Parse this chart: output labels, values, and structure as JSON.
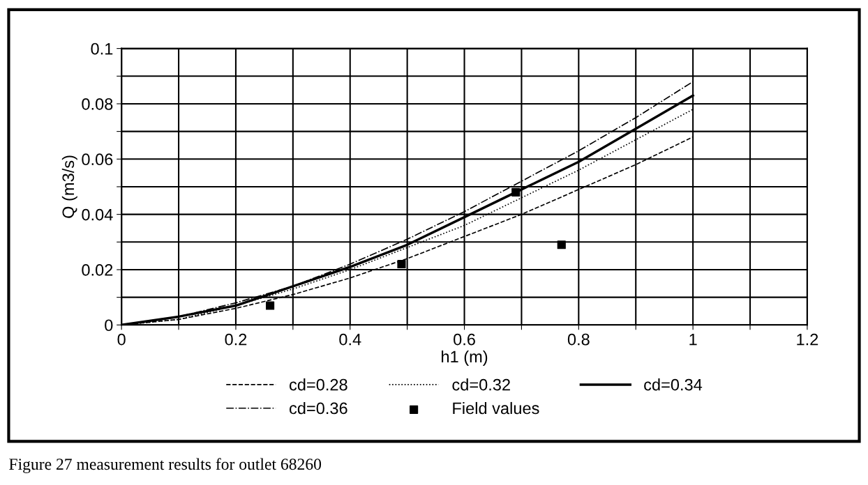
{
  "chart_data": {
    "type": "line",
    "xlabel": "h1 (m)",
    "ylabel": "Q (m3/s)",
    "xlim": [
      0,
      1.2
    ],
    "ylim": [
      0,
      0.1
    ],
    "xticks": [
      0,
      {
        "value": 0.1,
        "label": null
      },
      0.2,
      {
        "value": 0.3,
        "label": null
      },
      0.4,
      {
        "value": 0.5,
        "label": null
      },
      0.6,
      {
        "value": 0.7,
        "label": null
      },
      0.8,
      {
        "value": 0.9,
        "label": null
      },
      1,
      {
        "value": 1.1,
        "label": null
      },
      1.2
    ],
    "yticks": [
      0,
      {
        "value": 0.01,
        "label": null
      },
      0.02,
      {
        "value": 0.03,
        "label": null
      },
      0.04,
      {
        "value": 0.05,
        "label": null
      },
      0.06,
      {
        "value": 0.07,
        "label": null
      },
      0.08,
      {
        "value": 0.09,
        "label": null
      },
      0.1
    ],
    "grid": true,
    "legend": "bottom",
    "series": [
      {
        "name": "cd=0.28",
        "color": "#000000",
        "line_style": "dashed",
        "x": [
          0,
          0.1,
          0.2,
          0.3,
          0.4,
          0.5,
          0.6,
          0.7,
          0.8,
          0.9,
          1.0
        ],
        "values": [
          0,
          0.002,
          0.006,
          0.011,
          0.017,
          0.024,
          0.032,
          0.04,
          0.049,
          0.058,
          0.068
        ]
      },
      {
        "name": "cd=0.32",
        "color": "#000000",
        "line_style": "dotted",
        "x": [
          0,
          0.1,
          0.2,
          0.3,
          0.4,
          0.5,
          0.6,
          0.7,
          0.8,
          0.9,
          1.0
        ],
        "values": [
          0,
          0.002,
          0.007,
          0.013,
          0.02,
          0.028,
          0.036,
          0.046,
          0.056,
          0.067,
          0.078
        ]
      },
      {
        "name": "cd=0.34",
        "color": "#000000",
        "line_style": "solid",
        "x": [
          0,
          0.1,
          0.2,
          0.3,
          0.4,
          0.5,
          0.6,
          0.7,
          0.8,
          0.9,
          1.0
        ],
        "values": [
          0,
          0.003,
          0.007,
          0.014,
          0.021,
          0.029,
          0.039,
          0.049,
          0.059,
          0.071,
          0.083
        ]
      },
      {
        "name": "cd=0.36",
        "color": "#000000",
        "line_style": "dashdot",
        "x": [
          0,
          0.1,
          0.2,
          0.3,
          0.4,
          0.5,
          0.6,
          0.7,
          0.8,
          0.9,
          1.0
        ],
        "values": [
          0,
          0.003,
          0.008,
          0.014,
          0.022,
          0.031,
          0.041,
          0.052,
          0.063,
          0.075,
          0.088
        ]
      },
      {
        "name": "Field values",
        "type": "scatter",
        "marker": "square",
        "color": "#000000",
        "x": [
          0.26,
          0.49,
          0.69,
          0.77
        ],
        "values": [
          0.007,
          0.022,
          0.048,
          0.029
        ]
      }
    ],
    "annotations": [
      "Figure 27 measurement results for outlet 68260"
    ]
  }
}
